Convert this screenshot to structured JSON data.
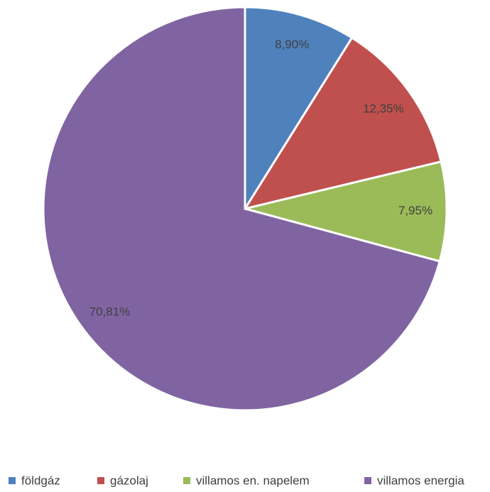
{
  "chart_data": {
    "type": "pie",
    "categories": [
      "földgáz",
      "gázolaj",
      "villamos en. napelem",
      "villamos energia"
    ],
    "values": [
      8.9,
      12.35,
      7.95,
      70.81
    ],
    "value_labels": [
      "8,90%",
      "12,35%",
      "7,95%",
      "70,81%"
    ],
    "colors": [
      "#4f81bd",
      "#c0504d",
      "#9bbb59",
      "#8064a2"
    ],
    "legend": "bottom"
  }
}
